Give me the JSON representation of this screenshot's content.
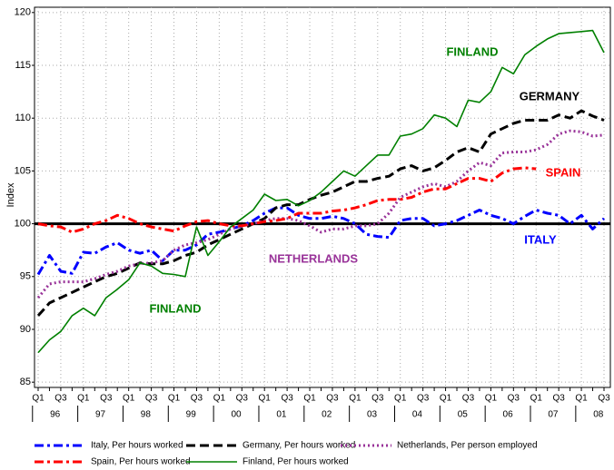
{
  "chart_data": {
    "type": "line",
    "y_label": "Index",
    "categories": [
      "Q1",
      null,
      "Q3",
      null,
      "Q1",
      null,
      "Q3",
      null,
      "Q1",
      null,
      "Q3",
      null,
      "Q1",
      null,
      "Q3",
      null,
      "Q1",
      null,
      "Q3",
      null,
      "Q1",
      null,
      "Q3",
      null,
      "Q1",
      null,
      "Q3",
      null,
      "Q1",
      null,
      "Q3",
      null,
      "Q1",
      null,
      "Q3",
      null,
      "Q1",
      null,
      "Q3",
      null,
      "Q1",
      null,
      "Q3",
      null,
      "Q1",
      null,
      "Q3",
      null,
      "Q1",
      null,
      "Q3"
    ],
    "years": [
      "96",
      "97",
      "98",
      "99",
      "00",
      "01",
      "02",
      "03",
      "04",
      "05",
      "06",
      "07",
      "08"
    ],
    "series": [
      {
        "name": "Italy, Per hours worked",
        "color": "#0000ff",
        "style": "dashdot",
        "values": [
          95.2,
          97,
          95.5,
          95.3,
          97.3,
          97.2,
          97.8,
          98.2,
          97.5,
          97.2,
          97.5,
          96.5,
          97.5,
          97.5,
          98,
          99,
          99.2,
          99.5,
          99.8,
          100.3,
          101,
          101.5,
          101.5,
          100.8,
          100.5,
          100.5,
          100.7,
          100.5,
          100,
          99,
          98.8,
          98.7,
          100.3,
          100.5,
          100.5,
          99.8,
          100,
          100.3,
          100.8,
          101.3,
          100.8,
          100.5,
          100,
          100.7,
          101.3,
          101,
          100.8,
          100,
          100.8,
          99.5,
          100.5
        ]
      },
      {
        "name": "Germany, Per hours worked",
        "color": "#000000",
        "style": "dashed",
        "values": [
          91.3,
          92.5,
          93,
          93.5,
          94,
          94.5,
          95,
          95.3,
          95.8,
          96.3,
          96.2,
          96.2,
          96.5,
          97,
          97.3,
          98,
          98.5,
          99,
          99.5,
          100,
          100.5,
          101.5,
          101.8,
          101.8,
          102.3,
          102.7,
          103,
          103.5,
          104,
          104,
          104.3,
          104.5,
          105.2,
          105.5,
          105,
          105.3,
          106,
          106.8,
          107.2,
          106.8,
          108.5,
          109,
          109.5,
          109.8,
          109.8,
          109.8,
          110.3,
          110,
          110.7,
          110.2,
          109.8
        ]
      },
      {
        "name": "Netherlands, Per person employed",
        "color": "#993399",
        "style": "dotted",
        "values": [
          93,
          94.3,
          94.5,
          94.5,
          94.5,
          94.8,
          95.2,
          95.5,
          96,
          96.2,
          96.3,
          96.5,
          97.5,
          98,
          98.2,
          98.5,
          99,
          99.5,
          99.8,
          100,
          100.3,
          100.5,
          100.5,
          100.3,
          99.8,
          99.2,
          99.5,
          99.5,
          99.8,
          99.8,
          100,
          101,
          102.5,
          103,
          103.5,
          103.8,
          103.5,
          104,
          105,
          105.8,
          105.5,
          106.7,
          106.8,
          106.8,
          107,
          107.5,
          108.5,
          108.8,
          108.7,
          108.3,
          108.4
        ]
      },
      {
        "name": "Spain, Per hours worked",
        "color": "#ff0000",
        "style": "dashdot",
        "values": [
          100,
          99.8,
          99.7,
          99.2,
          99.5,
          100,
          100.3,
          100.8,
          100.5,
          100,
          99.7,
          99.5,
          99.3,
          99.8,
          100.2,
          100.3,
          100,
          99.8,
          99.8,
          100,
          100.2,
          100.3,
          100.5,
          101,
          101,
          101,
          101.2,
          101.3,
          101.5,
          101.8,
          102.2,
          102.3,
          102.3,
          102.5,
          103,
          103.3,
          103.3,
          103.8,
          104.3,
          104.3,
          104,
          104.8,
          105.2,
          105.3,
          105.2,
          null,
          null,
          null,
          null,
          null,
          null
        ]
      },
      {
        "name": "Finland, Per hours worked",
        "color": "#008000",
        "style": "solid",
        "values": [
          87.8,
          89,
          89.8,
          91.3,
          92,
          91.3,
          93,
          93.8,
          94.7,
          96.3,
          96,
          95.3,
          95.2,
          95,
          99.7,
          97,
          98.3,
          99.7,
          100.5,
          101.3,
          102.8,
          102.2,
          102.3,
          101.7,
          102.2,
          103,
          104,
          105,
          104.5,
          105.5,
          106.5,
          106.5,
          108.3,
          108.5,
          109,
          110.3,
          110,
          109.2,
          111.7,
          111.5,
          112.5,
          114.8,
          114.2,
          116,
          116.8,
          117.5,
          118,
          118.1,
          118.2,
          118.3,
          116.2
        ]
      }
    ],
    "reference": 100,
    "annotations": [
      {
        "text": "FINLAND",
        "color": "#008000"
      },
      {
        "text": "GERMANY",
        "color": "#000000"
      },
      {
        "text": "SPAIN",
        "color": "#ff0000"
      },
      {
        "text": "ITALY",
        "color": "#0000ff"
      },
      {
        "text": "NETHERLANDS",
        "color": "#993399"
      },
      {
        "text": "FINLAND",
        "color": "#008000"
      }
    ],
    "ylim": [
      84.5,
      120.5
    ],
    "yticks": [
      85,
      90,
      95,
      100,
      105,
      110,
      115,
      120
    ],
    "grid": true,
    "legend": "bottom"
  }
}
